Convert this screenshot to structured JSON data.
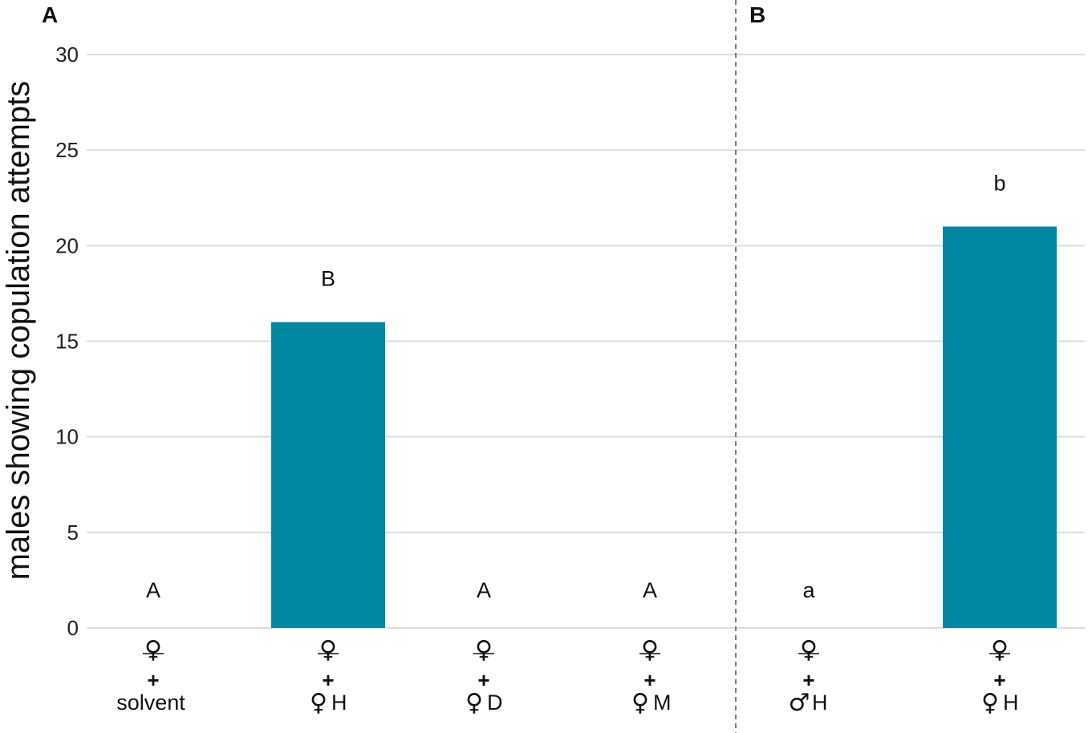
{
  "chart_data": {
    "type": "bar",
    "ylabel": "males showing copulation attempts",
    "ylim": [
      0,
      30
    ],
    "yticks": [
      "0",
      "5",
      "10",
      "15",
      "20",
      "25",
      "30"
    ],
    "grid": true,
    "bar_color": "#0088a3",
    "panels": [
      {
        "label": "A",
        "categories": [
          {
            "top": "♀",
            "plus": "+",
            "sym": "",
            "text": "solvent",
            "value": 0,
            "letter": "A"
          },
          {
            "top": "♀",
            "plus": "+",
            "sym": "♀",
            "text": "H",
            "value": 16,
            "letter": "B"
          },
          {
            "top": "♀",
            "plus": "+",
            "sym": "♀",
            "text": "D",
            "value": 0,
            "letter": "A"
          },
          {
            "top": "♀",
            "plus": "+",
            "sym": "♀",
            "text": "M",
            "value": 0,
            "letter": "A"
          }
        ]
      },
      {
        "label": "B",
        "categories": [
          {
            "top": "♀",
            "plus": "+",
            "sym": "♂",
            "text": "H",
            "value": 0,
            "letter": "a"
          },
          {
            "top": "♀",
            "plus": "+",
            "sym": "♀",
            "text": "H",
            "value": 21,
            "letter": "b"
          }
        ]
      }
    ]
  }
}
